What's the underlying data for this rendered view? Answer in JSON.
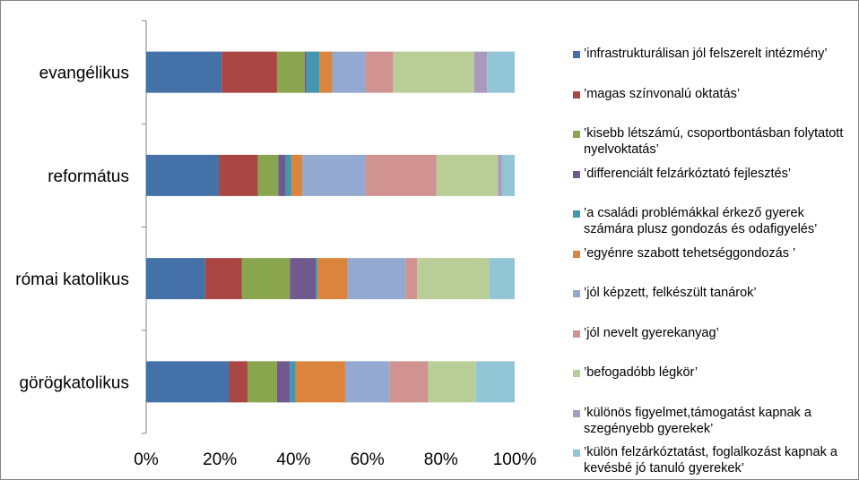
{
  "chart_data": {
    "type": "bar",
    "orientation": "horizontal",
    "stacked": "percent",
    "categories": [
      "evangélikus",
      "református",
      "római katolikus",
      "görögkatolikus"
    ],
    "series": [
      {
        "name": "’infrastrukturálisan jól felszerelt intézmény’",
        "color": "#4472A8",
        "values": [
          20.5,
          19.5,
          16,
          22.5
        ]
      },
      {
        "name": "’magas színvonalú oktatás’",
        "color": "#AA4643",
        "values": [
          15,
          10.5,
          10,
          5
        ]
      },
      {
        "name": "’kisebb létszámú, csoportbontásban folytatott nyelvoktatás’",
        "color": "#89A54E",
        "values": [
          7.5,
          5.5,
          13,
          8
        ]
      },
      {
        "name": "’differenciált felzárkóztató fejlesztés’",
        "color": "#71588F",
        "values": [
          0.5,
          2,
          7,
          3.5
        ]
      },
      {
        "name": "’a családi problémákkal érkező gyerek számára plusz gondozás és odafigyelés’",
        "color": "#4198AF",
        "values": [
          3.5,
          1.5,
          0.5,
          1.5
        ]
      },
      {
        "name": "’egyénre szabott tehetséggondozás ’",
        "color": "#DB843D",
        "values": [
          3.5,
          3,
          8,
          13.5
        ]
      },
      {
        "name": "’jól képzett, felkészült tanárok’",
        "color": "#93A9CF",
        "values": [
          9,
          17,
          16,
          12
        ]
      },
      {
        "name": "’jól nevelt gyerekanyag’",
        "color": "#D19392",
        "values": [
          7.5,
          19,
          3,
          10.5
        ]
      },
      {
        "name": "’befogadóbb légkör’",
        "color": "#B9CD96",
        "values": [
          22,
          16.5,
          19.5,
          13
        ]
      },
      {
        "name": "’különös figyelmet,támogatást kapnak a szegényebb gyerekek’",
        "color": "#A99BBD",
        "values": [
          3.5,
          1,
          0,
          0
        ]
      },
      {
        "name": "’külön felzárkóztatást, foglalkozást kapnak a kevésbé jó tanuló gyerekek’",
        "color": "#92C5D6",
        "values": [
          7.5,
          3.5,
          7,
          10.5
        ]
      }
    ],
    "xticks": [
      "0%",
      "20%",
      "40%",
      "60%",
      "80%",
      "100%"
    ],
    "xlim": [
      0,
      100
    ],
    "legend": "right"
  }
}
